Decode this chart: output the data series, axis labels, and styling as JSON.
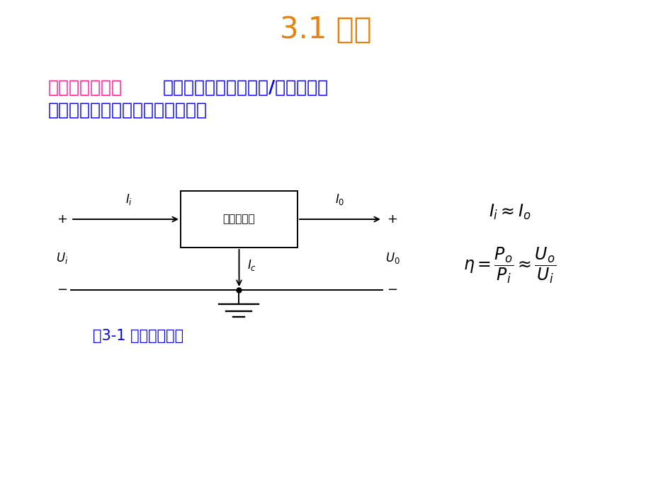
{
  "title": "3.1 概述",
  "title_color": "#E8820C",
  "title_fontsize": 30,
  "bg_color": "#FFFFFF",
  "text_line1_prefix": "线性稳压电源：",
  "text_line1_prefix_color": "#FF1493",
  "text_line1_suffix": "通过将输入和输出功率/电压的差值",
  "text_line1_suffix_color": "#0000EE",
  "text_line2": "消耗在稳压电路上来实现输出稳压",
  "text_line2_color": "#0000EE",
  "text_fontsize": 18,
  "box_label": "三端稳压器",
  "caption": "图3-1 线性稳压电源",
  "caption_color": "#0000EE",
  "caption_fontsize": 15,
  "diagram_color": "#000000"
}
